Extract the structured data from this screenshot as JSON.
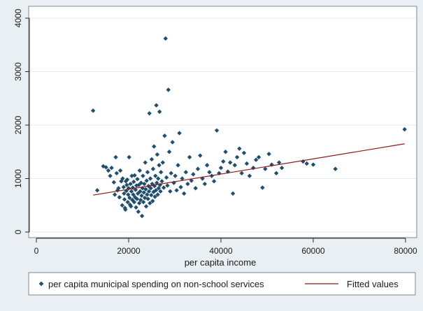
{
  "chart_data": {
    "type": "scatter",
    "title": "",
    "xlabel": "per capita income",
    "ylabel": "",
    "xlim": [
      0,
      80000
    ],
    "ylim": [
      0,
      4000
    ],
    "x_ticks": [
      0,
      20000,
      40000,
      60000,
      80000
    ],
    "y_ticks": [
      0,
      1000,
      2000,
      3000,
      4000
    ],
    "x_tick_labels": [
      "0",
      "20000",
      "40000",
      "60000",
      "80000"
    ],
    "y_tick_labels": [
      "0",
      "1000",
      "2000",
      "3000",
      "4000"
    ],
    "grid": true,
    "legend_placement": "bottom",
    "colors": {
      "plot_background": "#ffffff",
      "outer_background": "#e9eff2",
      "marker": "#1f4e6e",
      "fit_line": "#8b1a1a",
      "grid": "#e6ebee"
    },
    "series": [
      {
        "name": "per capita municipal spending on non-school services",
        "type": "scatter",
        "marker": "diamond",
        "points": [
          [
            12300,
            2270
          ],
          [
            13200,
            780
          ],
          [
            14500,
            1230
          ],
          [
            15100,
            1210
          ],
          [
            15600,
            1150
          ],
          [
            16000,
            1050
          ],
          [
            16300,
            1200
          ],
          [
            16800,
            930
          ],
          [
            17000,
            700
          ],
          [
            17200,
            1400
          ],
          [
            17400,
            1100
          ],
          [
            17600,
            780
          ],
          [
            17800,
            820
          ],
          [
            18000,
            650
          ],
          [
            18200,
            1150
          ],
          [
            18400,
            950
          ],
          [
            18600,
            500
          ],
          [
            18700,
            1000
          ],
          [
            18900,
            840
          ],
          [
            19000,
            720
          ],
          [
            19100,
            610
          ],
          [
            19200,
            450
          ],
          [
            19300,
            420
          ],
          [
            19400,
            950
          ],
          [
            19500,
            770
          ],
          [
            19600,
            880
          ],
          [
            19700,
            980
          ],
          [
            19800,
            560
          ],
          [
            19900,
            700
          ],
          [
            20000,
            820
          ],
          [
            20100,
            1400
          ],
          [
            20200,
            640
          ],
          [
            20300,
            510
          ],
          [
            20400,
            900
          ],
          [
            20500,
            480
          ],
          [
            20600,
            760
          ],
          [
            20700,
            1050
          ],
          [
            20800,
            600
          ],
          [
            20900,
            830
          ],
          [
            21000,
            700
          ],
          [
            21100,
            940
          ],
          [
            21200,
            560
          ],
          [
            21300,
            1060
          ],
          [
            21400,
            650
          ],
          [
            21500,
            790
          ],
          [
            21600,
            460
          ],
          [
            21700,
            870
          ],
          [
            21800,
            620
          ],
          [
            21900,
            990
          ],
          [
            22000,
            720
          ],
          [
            22100,
            380
          ],
          [
            22200,
            880
          ],
          [
            22300,
            540
          ],
          [
            22400,
            1150
          ],
          [
            22500,
            760
          ],
          [
            22600,
            600
          ],
          [
            22700,
            920
          ],
          [
            22800,
            680
          ],
          [
            22900,
            300
          ],
          [
            23000,
            820
          ],
          [
            23100,
            1050
          ],
          [
            23200,
            560
          ],
          [
            23300,
            740
          ],
          [
            23400,
            900
          ],
          [
            23500,
            640
          ],
          [
            23600,
            1300
          ],
          [
            23700,
            800
          ],
          [
            23800,
            480
          ],
          [
            23900,
            960
          ],
          [
            24000,
            700
          ],
          [
            24100,
            1120
          ],
          [
            24200,
            620
          ],
          [
            24300,
            860
          ],
          [
            24400,
            760
          ],
          [
            24500,
            2220
          ],
          [
            24600,
            540
          ],
          [
            24700,
            1000
          ],
          [
            24800,
            820
          ],
          [
            24900,
            690
          ],
          [
            25000,
            1360
          ],
          [
            25100,
            900
          ],
          [
            25200,
            580
          ],
          [
            25300,
            1180
          ],
          [
            25400,
            750
          ],
          [
            25500,
            1600
          ],
          [
            25600,
            860
          ],
          [
            25700,
            660
          ],
          [
            25800,
            1050
          ],
          [
            25900,
            780
          ],
          [
            26000,
            2370
          ],
          [
            26100,
            920
          ],
          [
            26200,
            1450
          ],
          [
            26300,
            700
          ],
          [
            26400,
            1000
          ],
          [
            26500,
            820
          ],
          [
            26600,
            1250
          ],
          [
            26700,
            2250
          ],
          [
            26800,
            880
          ],
          [
            26900,
            760
          ],
          [
            27000,
            1120
          ],
          [
            27200,
            950
          ],
          [
            27400,
            1300
          ],
          [
            27600,
            830
          ],
          [
            27800,
            1800
          ],
          [
            28000,
            3620
          ],
          [
            28200,
            1020
          ],
          [
            28400,
            870
          ],
          [
            28600,
            2660
          ],
          [
            28800,
            1500
          ],
          [
            29000,
            760
          ],
          [
            29200,
            1100
          ],
          [
            29500,
            1680
          ],
          [
            29800,
            920
          ],
          [
            30100,
            1050
          ],
          [
            30400,
            780
          ],
          [
            30700,
            1250
          ],
          [
            31000,
            1850
          ],
          [
            31300,
            840
          ],
          [
            31600,
            1000
          ],
          [
            32000,
            720
          ],
          [
            32400,
            1120
          ],
          [
            32800,
            900
          ],
          [
            33200,
            1400
          ],
          [
            33600,
            960
          ],
          [
            34000,
            1080
          ],
          [
            34500,
            820
          ],
          [
            35000,
            1180
          ],
          [
            35500,
            1430
          ],
          [
            36000,
            1000
          ],
          [
            36500,
            900
          ],
          [
            37000,
            1250
          ],
          [
            37500,
            1120
          ],
          [
            38000,
            1050
          ],
          [
            38500,
            950
          ],
          [
            39100,
            1900
          ],
          [
            39600,
            1100
          ],
          [
            40000,
            1200
          ],
          [
            40500,
            1320
          ],
          [
            41000,
            1500
          ],
          [
            41500,
            1130
          ],
          [
            42000,
            1300
          ],
          [
            42600,
            720
          ],
          [
            43000,
            1250
          ],
          [
            43500,
            1400
          ],
          [
            44000,
            1560
          ],
          [
            44500,
            1100
          ],
          [
            45000,
            1480
          ],
          [
            45600,
            1280
          ],
          [
            46200,
            1050
          ],
          [
            47000,
            1200
          ],
          [
            47600,
            1350
          ],
          [
            48200,
            1400
          ],
          [
            49000,
            830
          ],
          [
            49600,
            1180
          ],
          [
            50400,
            1460
          ],
          [
            51000,
            1260
          ],
          [
            52000,
            1100
          ],
          [
            52600,
            1300
          ],
          [
            53200,
            1200
          ],
          [
            57800,
            1320
          ],
          [
            58600,
            1280
          ],
          [
            60000,
            1260
          ],
          [
            64800,
            1180
          ],
          [
            79800,
            1920
          ]
        ]
      },
      {
        "name": "Fitted values",
        "type": "line",
        "x": [
          12300,
          79800
        ],
        "values": [
          690,
          1650
        ]
      }
    ]
  }
}
